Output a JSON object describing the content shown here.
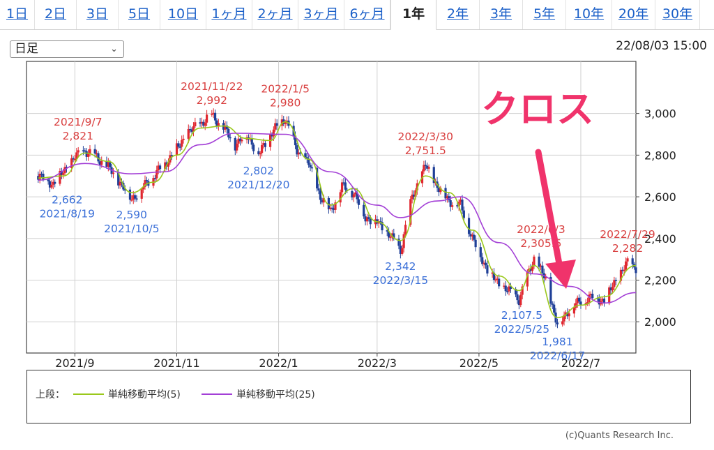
{
  "tabs": [
    {
      "label": "1日",
      "active": false
    },
    {
      "label": "2日",
      "active": false
    },
    {
      "label": "3日",
      "active": false
    },
    {
      "label": "5日",
      "active": false
    },
    {
      "label": "10日",
      "active": false
    },
    {
      "label": "1ヶ月",
      "active": false
    },
    {
      "label": "2ヶ月",
      "active": false
    },
    {
      "label": "3ヶ月",
      "active": false
    },
    {
      "label": "6ヶ月",
      "active": false
    },
    {
      "label": "1年",
      "active": true
    },
    {
      "label": "2年",
      "active": false
    },
    {
      "label": "3年",
      "active": false
    },
    {
      "label": "5年",
      "active": false
    },
    {
      "label": "10年",
      "active": false
    },
    {
      "label": "20年",
      "active": false
    },
    {
      "label": "30年",
      "active": false
    }
  ],
  "toolbar": {
    "interval_select": "日足",
    "timestamp": "22/08/03 15:00"
  },
  "legend": {
    "prefix": "上段：",
    "ma5_label": "単純移動平均(5)",
    "ma25_label": "単純移動平均(25)",
    "ma5_color": "#9ac81c",
    "ma25_color": "#a33fd6"
  },
  "copyright": "(c)Quants Research Inc.",
  "annotation": {
    "text": "クロス",
    "color": "#f0336b"
  },
  "colors": {
    "up": "#e0272f",
    "down": "#1f3f97",
    "high_label": "#d94040",
    "low_label": "#3a6fd8",
    "grid": "#d0d0d0"
  },
  "chart_data": {
    "type": "candlestick",
    "title": "",
    "xlabel": "",
    "ylabel": "",
    "ylim": [
      1850,
      3250
    ],
    "yticks": [
      2000,
      2200,
      2400,
      2600,
      2800,
      3000
    ],
    "ytick_labels": [
      "2,000",
      "2,200",
      "2,400",
      "2,600",
      "2,800",
      "3,000"
    ],
    "x_range": [
      "2021-08-03",
      "2022-08-03"
    ],
    "xticks": [
      {
        "date": "2021-09-01",
        "label": "2021/9"
      },
      {
        "date": "2021-11-01",
        "label": "2021/11"
      },
      {
        "date": "2022-01-01",
        "label": "2022/1"
      },
      {
        "date": "2022-03-01",
        "label": "2022/3"
      },
      {
        "date": "2022-05-01",
        "label": "2022/5"
      },
      {
        "date": "2022-07-01",
        "label": "2022/7"
      }
    ],
    "price_points": [
      {
        "date": "2021-08-10",
        "close": 2700
      },
      {
        "date": "2021-08-19",
        "close": 2662
      },
      {
        "date": "2021-08-25",
        "close": 2720
      },
      {
        "date": "2021-09-01",
        "close": 2790
      },
      {
        "date": "2021-09-07",
        "close": 2821
      },
      {
        "date": "2021-09-14",
        "close": 2790
      },
      {
        "date": "2021-09-21",
        "close": 2740
      },
      {
        "date": "2021-09-27",
        "close": 2680
      },
      {
        "date": "2021-10-05",
        "close": 2590
      },
      {
        "date": "2021-10-11",
        "close": 2640
      },
      {
        "date": "2021-10-18",
        "close": 2700
      },
      {
        "date": "2021-10-25",
        "close": 2760
      },
      {
        "date": "2021-11-01",
        "close": 2830
      },
      {
        "date": "2021-11-08",
        "close": 2910
      },
      {
        "date": "2021-11-15",
        "close": 2950
      },
      {
        "date": "2021-11-22",
        "close": 2992
      },
      {
        "date": "2021-11-29",
        "close": 2930
      },
      {
        "date": "2021-12-06",
        "close": 2850
      },
      {
        "date": "2021-12-13",
        "close": 2900
      },
      {
        "date": "2021-12-20",
        "close": 2802
      },
      {
        "date": "2021-12-27",
        "close": 2900
      },
      {
        "date": "2022-01-05",
        "close": 2980
      },
      {
        "date": "2022-01-12",
        "close": 2820
      },
      {
        "date": "2022-01-19",
        "close": 2760
      },
      {
        "date": "2022-01-26",
        "close": 2600
      },
      {
        "date": "2022-02-01",
        "close": 2530
      },
      {
        "date": "2022-02-08",
        "close": 2650
      },
      {
        "date": "2022-02-15",
        "close": 2620
      },
      {
        "date": "2022-02-22",
        "close": 2500
      },
      {
        "date": "2022-03-01",
        "close": 2480
      },
      {
        "date": "2022-03-08",
        "close": 2420
      },
      {
        "date": "2022-03-15",
        "close": 2342
      },
      {
        "date": "2022-03-22",
        "close": 2600
      },
      {
        "date": "2022-03-30",
        "close": 2751.5
      },
      {
        "date": "2022-04-06",
        "close": 2650
      },
      {
        "date": "2022-04-13",
        "close": 2580
      },
      {
        "date": "2022-04-20",
        "close": 2560
      },
      {
        "date": "2022-04-27",
        "close": 2400
      },
      {
        "date": "2022-05-06",
        "close": 2250
      },
      {
        "date": "2022-05-13",
        "close": 2180
      },
      {
        "date": "2022-05-20",
        "close": 2140
      },
      {
        "date": "2022-05-25",
        "close": 2107.5
      },
      {
        "date": "2022-06-03",
        "close": 2305.5
      },
      {
        "date": "2022-06-10",
        "close": 2200
      },
      {
        "date": "2022-06-17",
        "close": 1981
      },
      {
        "date": "2022-06-24",
        "close": 2060
      },
      {
        "date": "2022-07-01",
        "close": 2100
      },
      {
        "date": "2022-07-08",
        "close": 2120
      },
      {
        "date": "2022-07-15",
        "close": 2100
      },
      {
        "date": "2022-07-22",
        "close": 2200
      },
      {
        "date": "2022-07-29",
        "close": 2282
      },
      {
        "date": "2022-08-03",
        "close": 2260
      }
    ],
    "series": [
      {
        "name": "単純移動平均(5)",
        "points": [
          {
            "date": "2021-08-10",
            "value": 2690
          },
          {
            "date": "2021-08-25",
            "value": 2700
          },
          {
            "date": "2021-09-07",
            "value": 2810
          },
          {
            "date": "2021-09-21",
            "value": 2770
          },
          {
            "date": "2021-10-05",
            "value": 2620
          },
          {
            "date": "2021-10-18",
            "value": 2670
          },
          {
            "date": "2021-11-01",
            "value": 2800
          },
          {
            "date": "2021-11-15",
            "value": 2930
          },
          {
            "date": "2021-11-29",
            "value": 2940
          },
          {
            "date": "2021-12-13",
            "value": 2880
          },
          {
            "date": "2021-12-27",
            "value": 2870
          },
          {
            "date": "2022-01-05",
            "value": 2960
          },
          {
            "date": "2022-01-19",
            "value": 2780
          },
          {
            "date": "2022-02-01",
            "value": 2560
          },
          {
            "date": "2022-02-15",
            "value": 2640
          },
          {
            "date": "2022-03-01",
            "value": 2480
          },
          {
            "date": "2022-03-15",
            "value": 2390
          },
          {
            "date": "2022-03-30",
            "value": 2700
          },
          {
            "date": "2022-04-13",
            "value": 2620
          },
          {
            "date": "2022-04-27",
            "value": 2440
          },
          {
            "date": "2022-05-13",
            "value": 2220
          },
          {
            "date": "2022-05-25",
            "value": 2150
          },
          {
            "date": "2022-06-03",
            "value": 2270
          },
          {
            "date": "2022-06-17",
            "value": 2020
          },
          {
            "date": "2022-07-01",
            "value": 2080
          },
          {
            "date": "2022-07-15",
            "value": 2120
          },
          {
            "date": "2022-08-03",
            "value": 2270
          }
        ]
      },
      {
        "name": "単純移動平均(25)",
        "points": [
          {
            "date": "2021-08-10",
            "value": 2680
          },
          {
            "date": "2021-09-07",
            "value": 2760
          },
          {
            "date": "2021-10-05",
            "value": 2710
          },
          {
            "date": "2021-10-25",
            "value": 2720
          },
          {
            "date": "2021-11-15",
            "value": 2850
          },
          {
            "date": "2021-12-06",
            "value": 2905
          },
          {
            "date": "2022-01-05",
            "value": 2900
          },
          {
            "date": "2022-02-01",
            "value": 2720
          },
          {
            "date": "2022-03-01",
            "value": 2560
          },
          {
            "date": "2022-03-15",
            "value": 2500
          },
          {
            "date": "2022-04-06",
            "value": 2580
          },
          {
            "date": "2022-04-20",
            "value": 2600
          },
          {
            "date": "2022-05-13",
            "value": 2380
          },
          {
            "date": "2022-06-03",
            "value": 2230
          },
          {
            "date": "2022-06-24",
            "value": 2170
          },
          {
            "date": "2022-07-15",
            "value": 2090
          },
          {
            "date": "2022-08-03",
            "value": 2140
          }
        ]
      }
    ],
    "annotations": [
      {
        "date": "2021-09-07",
        "value": 2821,
        "kind": "high",
        "date_label": "2021/9/7",
        "value_label": "2,821"
      },
      {
        "date": "2021-11-22",
        "value": 2992,
        "kind": "high",
        "date_label": "2021/11/22",
        "value_label": "2,992"
      },
      {
        "date": "2022-01-05",
        "value": 2980,
        "kind": "high",
        "date_label": "2022/1/5",
        "value_label": "2,980"
      },
      {
        "date": "2022-03-30",
        "value": 2751.5,
        "kind": "high",
        "date_label": "2022/3/30",
        "value_label": "2,751.5"
      },
      {
        "date": "2022-06-03",
        "value": 2305.5,
        "kind": "high",
        "date_label": "2022/6/3",
        "value_label": "2,305.5"
      },
      {
        "date": "2022-07-29",
        "value": 2282,
        "kind": "high",
        "date_label": "2022/7/29",
        "value_label": "2,282"
      },
      {
        "date": "2021-08-19",
        "value": 2662,
        "kind": "low",
        "date_label": "2021/8/19",
        "value_label": "2,662"
      },
      {
        "date": "2021-10-05",
        "value": 2590,
        "kind": "low",
        "date_label": "2021/10/5",
        "value_label": "2,590"
      },
      {
        "date": "2021-12-20",
        "value": 2802,
        "kind": "low",
        "date_label": "2021/12/20",
        "value_label": "2,802"
      },
      {
        "date": "2022-03-15",
        "value": 2342,
        "kind": "low",
        "date_label": "2022/3/15",
        "value_label": "2,342"
      },
      {
        "date": "2022-05-25",
        "value": 2107.5,
        "kind": "low",
        "date_label": "2022/5/25",
        "value_label": "2,107.5"
      },
      {
        "date": "2022-06-17",
        "value": 1981,
        "kind": "low",
        "date_label": "2022/6/17",
        "value_label": "1,981"
      }
    ]
  }
}
